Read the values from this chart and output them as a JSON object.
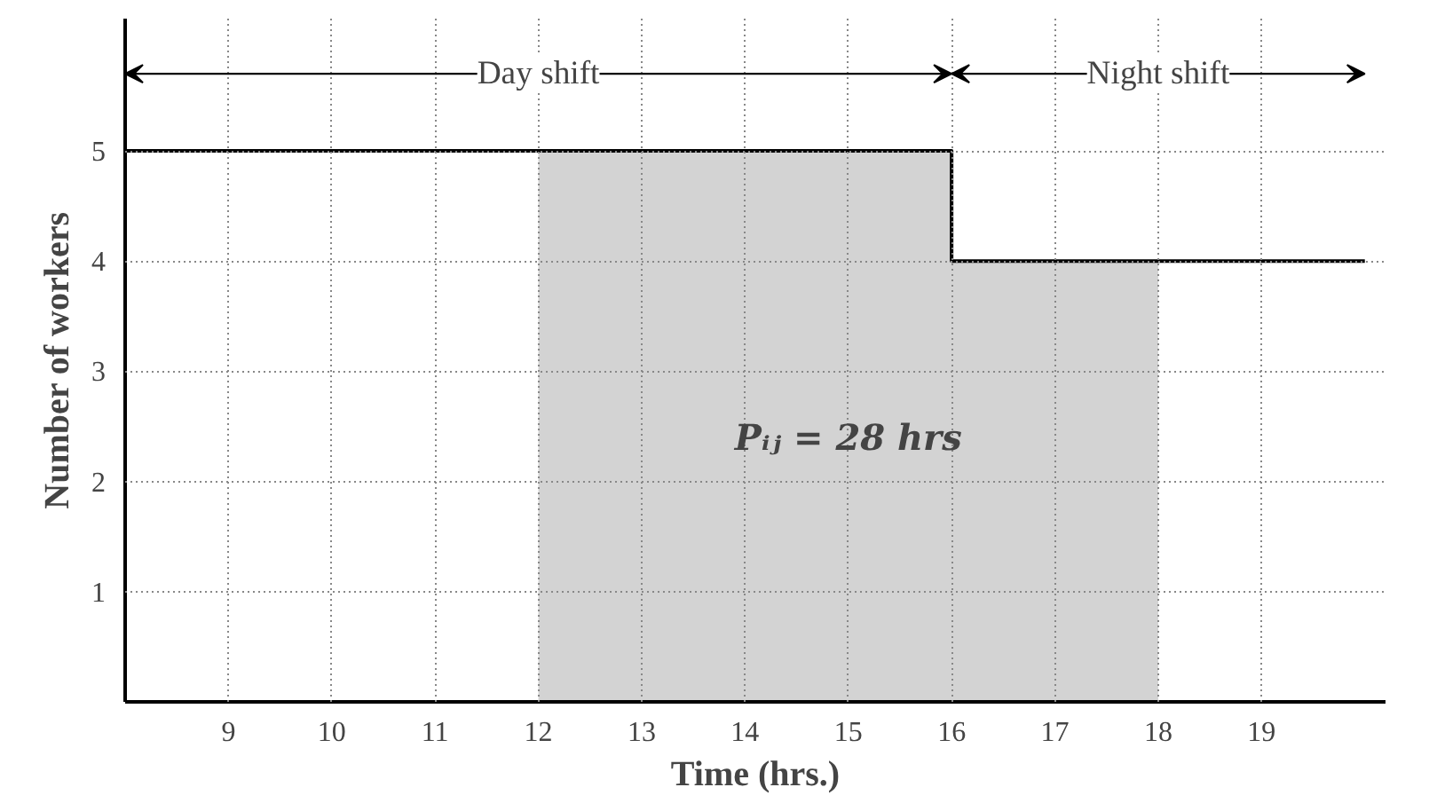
{
  "chart_data": {
    "type": "step",
    "xlabel": "Time (hrs.)",
    "ylabel": "Number of workers",
    "xlim": [
      8,
      20.2
    ],
    "ylim": [
      0,
      6.2
    ],
    "xticks": [
      9,
      10,
      11,
      12,
      13,
      14,
      15,
      16,
      17,
      18,
      19
    ],
    "yticks": [
      1,
      2,
      3,
      4,
      5
    ],
    "grid": true,
    "series": [
      {
        "type": "area",
        "color": "#d3d3d3",
        "x": [
          12,
          16,
          16,
          18
        ],
        "values": [
          5,
          5,
          4,
          4
        ]
      },
      {
        "color": "#000000",
        "x": [
          8,
          16,
          20
        ],
        "values": [
          5,
          4,
          4
        ]
      }
    ],
    "annotations": [
      "Day shift",
      "Night shift",
      "Pᵢⱼ = 28 hrs"
    ]
  }
}
